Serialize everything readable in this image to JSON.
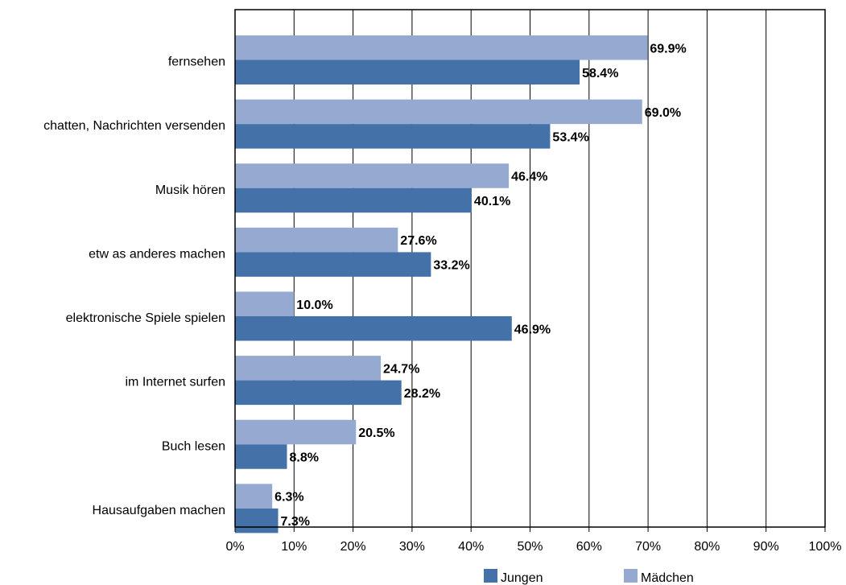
{
  "chart_data": {
    "type": "bar",
    "orientation": "horizontal",
    "categories": [
      "fernsehen",
      "chatten, Nachrichten versenden",
      "Musik hören",
      "etw as anderes machen",
      "elektronische Spiele spielen",
      "im Internet surfen",
      "Buch lesen",
      "Hausaufgaben machen"
    ],
    "series": [
      {
        "name": "Mädchen",
        "color": "#95a9d1",
        "values": [
          69.9,
          69.0,
          46.4,
          27.6,
          10.0,
          24.7,
          20.5,
          6.3
        ],
        "labels": [
          "69.9%",
          "69.0%",
          "46.4%",
          "27.6%",
          "10.0%",
          "24.7%",
          "20.5%",
          "6.3%"
        ]
      },
      {
        "name": "Jungen",
        "color": "#4472a8",
        "values": [
          58.4,
          53.4,
          40.1,
          33.2,
          46.9,
          28.2,
          8.8,
          7.3
        ],
        "labels": [
          "58.4%",
          "53.4%",
          "40.1%",
          "33.2%",
          "46.9%",
          "28.2%",
          "8.8%",
          "7.3%"
        ]
      }
    ],
    "xlim": [
      0,
      100
    ],
    "xticks": [
      "0%",
      "10%",
      "20%",
      "30%",
      "40%",
      "50%",
      "60%",
      "70%",
      "80%",
      "90%",
      "100%"
    ],
    "grid": true,
    "legend": {
      "position": "bottom-right",
      "entries": [
        "Jungen",
        "Mädchen"
      ]
    },
    "title": "",
    "xlabel": "",
    "ylabel": ""
  }
}
